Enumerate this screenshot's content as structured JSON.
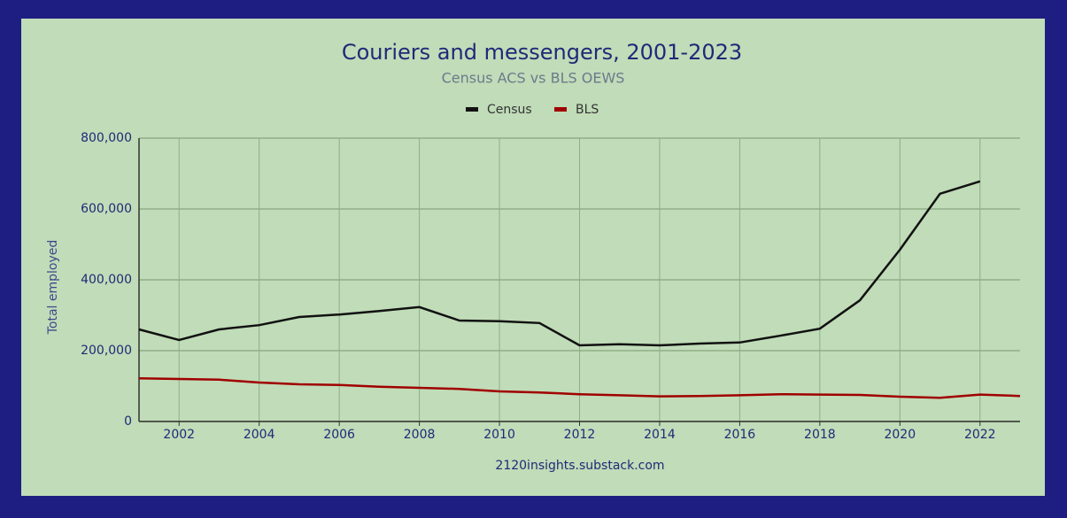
{
  "chart_data": {
    "type": "line",
    "title": "Couriers and messengers, 2001-2023",
    "subtitle": "Census ACS vs BLS OEWS",
    "y_label": "Total employed",
    "source": "2120insights.substack.com",
    "legend": "top",
    "grid": true,
    "x": [
      2001,
      2002,
      2003,
      2004,
      2005,
      2006,
      2007,
      2008,
      2009,
      2010,
      2011,
      2012,
      2013,
      2014,
      2015,
      2016,
      2017,
      2018,
      2019,
      2020,
      2021,
      2022,
      2023
    ],
    "series": [
      {
        "name": "Census",
        "color": "#111111",
        "values": [
          260000,
          230000,
          260000,
          272000,
          295000,
          302000,
          312000,
          323000,
          285000,
          283000,
          278000,
          215000,
          218000,
          215000,
          220000,
          223000,
          242000,
          262000,
          342000,
          485000,
          643000,
          678000,
          null
        ]
      },
      {
        "name": "BLS",
        "color": "#a00000",
        "values": [
          122000,
          120000,
          118000,
          110000,
          105000,
          103000,
          98000,
          95000,
          92000,
          85000,
          82000,
          77000,
          74000,
          71000,
          72000,
          74000,
          77000,
          76000,
          75000,
          70000,
          67000,
          76000,
          72000
        ]
      }
    ],
    "xlim": [
      2001,
      2023
    ],
    "xticks": [
      2002,
      2004,
      2006,
      2008,
      2010,
      2012,
      2014,
      2016,
      2018,
      2020,
      2022
    ],
    "ylim": [
      0,
      800000
    ],
    "yticks": [
      0,
      {
        "value": 200000,
        "label": "200,000"
      },
      {
        "value": 400000,
        "label": "400,000"
      },
      {
        "value": 600000,
        "label": "600,000"
      },
      {
        "value": 800000,
        "label": "800,000"
      }
    ]
  }
}
